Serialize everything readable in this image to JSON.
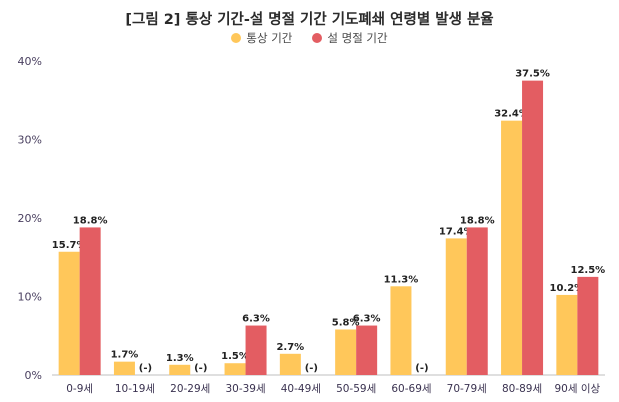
{
  "chart_data": {
    "type": "bar",
    "title": "[그림 2] 통상 기간-설 명절 기간 기도폐쇄 연령별 발생 분율",
    "categories": [
      "0-9세",
      "10-19세",
      "20-29세",
      "30-39세",
      "40-49세",
      "50-59세",
      "60-69세",
      "70-79세",
      "80-89세",
      "90세 이상"
    ],
    "series": [
      {
        "name": "통상 기간",
        "color": "#ffc75a",
        "values": [
          15.7,
          1.7,
          1.3,
          1.5,
          2.7,
          5.8,
          11.3,
          17.4,
          32.4,
          10.2
        ],
        "labels": [
          "15.7%",
          "1.7%",
          "1.3%",
          "1.5%",
          "2.7%",
          "5.8%",
          "11.3%",
          "17.4%",
          "32.4%",
          "10.2%"
        ]
      },
      {
        "name": "설 명절 기간",
        "color": "#e35d62",
        "values": [
          18.8,
          0,
          0,
          6.3,
          0,
          6.3,
          0,
          18.8,
          37.5,
          12.5
        ],
        "labels": [
          "18.8%",
          "(-)",
          "(-)",
          "6.3%",
          "(-)",
          "6.3%",
          "(-)",
          "18.8%",
          "37.5%",
          "12.5%"
        ]
      }
    ],
    "y_ticks": [
      "0%",
      "10%",
      "20%",
      "30%",
      "40%"
    ],
    "ylim": [
      0,
      40
    ],
    "grid": false,
    "legend_position": "top-center"
  }
}
